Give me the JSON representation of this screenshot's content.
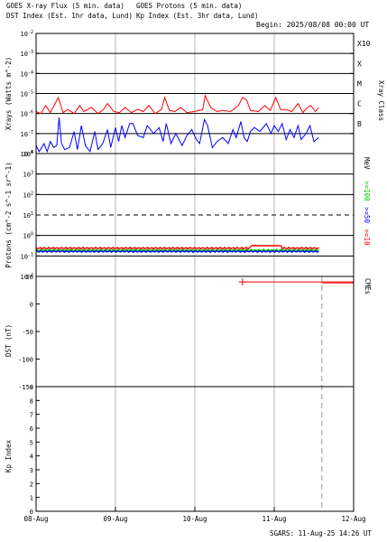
{
  "header": {
    "xray_title": "GOES X-ray Flux (5 min. data)",
    "dst_title": "DST Index (Est. 1hr data, Lund)",
    "proton_title": "GOES Protons (5 min. data)",
    "kp_title": "Kp Index (Est. 3hr data, Lund)",
    "begin": "Begin: 2025/08/08 00:00 UT"
  },
  "footer": {
    "credit": "SGARS: 11-Aug-25 14:26 UT"
  },
  "colors": {
    "red": "#ff0000",
    "blue": "#0000ff",
    "green": "#00cc00",
    "grey": "#b4b4b4"
  },
  "chart_data": [
    {
      "panel": "xray",
      "type": "line",
      "ylabel": "Xrays (Watts m^-2)",
      "ylabel_right": "Xray Class",
      "log_scale": true,
      "ylim_exp": [
        -8,
        -2
      ],
      "ytick_exp": [
        -8,
        -7,
        -6,
        -5,
        -4,
        -3,
        -2
      ],
      "class_labels": [
        {
          "label": "X10",
          "exp": -3
        },
        {
          "label": "X",
          "exp": -4
        },
        {
          "label": "M",
          "exp": -5
        },
        {
          "label": "C",
          "exp": -6
        },
        {
          "label": "B",
          "exp": -7
        }
      ],
      "series": [
        {
          "color": "red",
          "points": [
            [
              0,
              -5.9
            ],
            [
              0.06,
              -6.0
            ],
            [
              0.12,
              -5.6
            ],
            [
              0.18,
              -5.95
            ],
            [
              0.28,
              -5.2
            ],
            [
              0.34,
              -5.95
            ],
            [
              0.4,
              -5.8
            ],
            [
              0.48,
              -6.0
            ],
            [
              0.55,
              -5.6
            ],
            [
              0.6,
              -5.9
            ],
            [
              0.7,
              -5.7
            ],
            [
              0.78,
              -6.0
            ],
            [
              0.85,
              -5.8
            ],
            [
              0.9,
              -5.5
            ],
            [
              0.98,
              -5.9
            ],
            [
              1.05,
              -5.95
            ],
            [
              1.12,
              -5.7
            ],
            [
              1.2,
              -5.95
            ],
            [
              1.28,
              -5.8
            ],
            [
              1.35,
              -5.9
            ],
            [
              1.42,
              -5.6
            ],
            [
              1.5,
              -6.0
            ],
            [
              1.58,
              -5.8
            ],
            [
              1.62,
              -5.2
            ],
            [
              1.68,
              -5.85
            ],
            [
              1.75,
              -5.9
            ],
            [
              1.82,
              -5.7
            ],
            [
              1.9,
              -5.95
            ],
            [
              2.0,
              -5.9
            ],
            [
              2.1,
              -5.8
            ],
            [
              2.13,
              -5.1
            ],
            [
              2.2,
              -5.7
            ],
            [
              2.28,
              -5.9
            ],
            [
              2.35,
              -5.85
            ],
            [
              2.45,
              -5.9
            ],
            [
              2.55,
              -5.6
            ],
            [
              2.6,
              -5.2
            ],
            [
              2.65,
              -5.3
            ],
            [
              2.7,
              -5.85
            ],
            [
              2.8,
              -5.9
            ],
            [
              2.88,
              -5.6
            ],
            [
              2.95,
              -5.85
            ],
            [
              3.02,
              -5.2
            ],
            [
              3.08,
              -5.8
            ],
            [
              3.15,
              -5.8
            ],
            [
              3.22,
              -5.9
            ],
            [
              3.3,
              -5.5
            ],
            [
              3.36,
              -5.95
            ],
            [
              3.42,
              -5.7
            ],
            [
              3.46,
              -5.6
            ],
            [
              3.52,
              -5.9
            ],
            [
              3.56,
              -5.7
            ]
          ]
        },
        {
          "color": "blue",
          "points": [
            [
              0,
              -7.6
            ],
            [
              0.04,
              -7.9
            ],
            [
              0.1,
              -7.5
            ],
            [
              0.14,
              -7.9
            ],
            [
              0.18,
              -7.4
            ],
            [
              0.22,
              -7.7
            ],
            [
              0.26,
              -7.6
            ],
            [
              0.29,
              -6.2
            ],
            [
              0.32,
              -7.5
            ],
            [
              0.36,
              -7.8
            ],
            [
              0.42,
              -7.7
            ],
            [
              0.48,
              -6.9
            ],
            [
              0.52,
              -7.8
            ],
            [
              0.57,
              -6.6
            ],
            [
              0.62,
              -7.6
            ],
            [
              0.68,
              -7.9
            ],
            [
              0.74,
              -6.9
            ],
            [
              0.78,
              -7.8
            ],
            [
              0.84,
              -7.5
            ],
            [
              0.9,
              -6.8
            ],
            [
              0.94,
              -7.7
            ],
            [
              1.0,
              -6.7
            ],
            [
              1.04,
              -7.4
            ],
            [
              1.08,
              -6.6
            ],
            [
              1.12,
              -7.2
            ],
            [
              1.18,
              -6.5
            ],
            [
              1.22,
              -6.5
            ],
            [
              1.28,
              -7.1
            ],
            [
              1.35,
              -7.2
            ],
            [
              1.4,
              -6.6
            ],
            [
              1.48,
              -7.0
            ],
            [
              1.55,
              -6.7
            ],
            [
              1.6,
              -7.4
            ],
            [
              1.64,
              -6.5
            ],
            [
              1.7,
              -7.5
            ],
            [
              1.76,
              -7.0
            ],
            [
              1.84,
              -7.6
            ],
            [
              1.9,
              -7.1
            ],
            [
              1.96,
              -6.8
            ],
            [
              2.02,
              -7.3
            ],
            [
              2.06,
              -7.5
            ],
            [
              2.12,
              -6.3
            ],
            [
              2.16,
              -6.6
            ],
            [
              2.22,
              -7.7
            ],
            [
              2.28,
              -7.4
            ],
            [
              2.35,
              -7.2
            ],
            [
              2.42,
              -7.5
            ],
            [
              2.48,
              -6.8
            ],
            [
              2.52,
              -7.2
            ],
            [
              2.58,
              -6.4
            ],
            [
              2.62,
              -7.2
            ],
            [
              2.66,
              -7.4
            ],
            [
              2.7,
              -6.9
            ],
            [
              2.75,
              -6.7
            ],
            [
              2.82,
              -6.9
            ],
            [
              2.9,
              -6.5
            ],
            [
              2.96,
              -7.0
            ],
            [
              3.0,
              -6.6
            ],
            [
              3.05,
              -6.9
            ],
            [
              3.1,
              -6.5
            ],
            [
              3.15,
              -7.3
            ],
            [
              3.2,
              -6.8
            ],
            [
              3.25,
              -7.2
            ],
            [
              3.3,
              -6.6
            ],
            [
              3.34,
              -7.3
            ],
            [
              3.4,
              -7.0
            ],
            [
              3.45,
              -6.6
            ],
            [
              3.5,
              -7.4
            ],
            [
              3.56,
              -7.2
            ]
          ]
        }
      ]
    },
    {
      "panel": "protons",
      "type": "line",
      "ylabel": "Protons (cm^-2 s^-1 sr^-1)",
      "ylabel_right": "MeV",
      "log_scale": true,
      "ylim_exp": [
        -2,
        4
      ],
      "ytick_exp": [
        -2,
        -1,
        0,
        1,
        2,
        3,
        4
      ],
      "threshold_exp": 1,
      "energy_labels": [
        {
          "label": ">=100",
          "color": "green"
        },
        {
          "label": ">=50",
          "color": "blue"
        },
        {
          "label": ">=10",
          "color": "red"
        }
      ],
      "series": [
        {
          "color": "green",
          "level_exp": -0.72
        },
        {
          "color": "blue",
          "level_exp": -0.78
        },
        {
          "color": "red",
          "level_exp": -0.62,
          "bump_from": 2.7,
          "bump_to": 3.1,
          "bump_exp": -0.5
        }
      ]
    },
    {
      "panel": "dst",
      "type": "line",
      "ylabel": "DST (nT)",
      "ylabel_right": "CMEs",
      "ylim": [
        -150,
        50
      ],
      "yticks": [
        50,
        0,
        -50,
        -100,
        -150
      ],
      "cme_segment": {
        "start": 2.6,
        "end": 4.0,
        "value": 40,
        "marker": "+"
      }
    },
    {
      "panel": "kp",
      "type": "bar",
      "ylabel": "Kp Index",
      "ylim": [
        0,
        9
      ],
      "yticks": [
        0,
        1,
        2,
        3,
        4,
        5,
        6,
        7,
        8,
        9
      ]
    }
  ],
  "xaxis": {
    "xlim": [
      0,
      4
    ],
    "tick_labels": [
      "08-Aug",
      "09-Aug",
      "10-Aug",
      "11-Aug",
      "12-Aug"
    ],
    "day_lines": [
      1,
      2,
      3
    ],
    "now_marker": 3.6
  }
}
